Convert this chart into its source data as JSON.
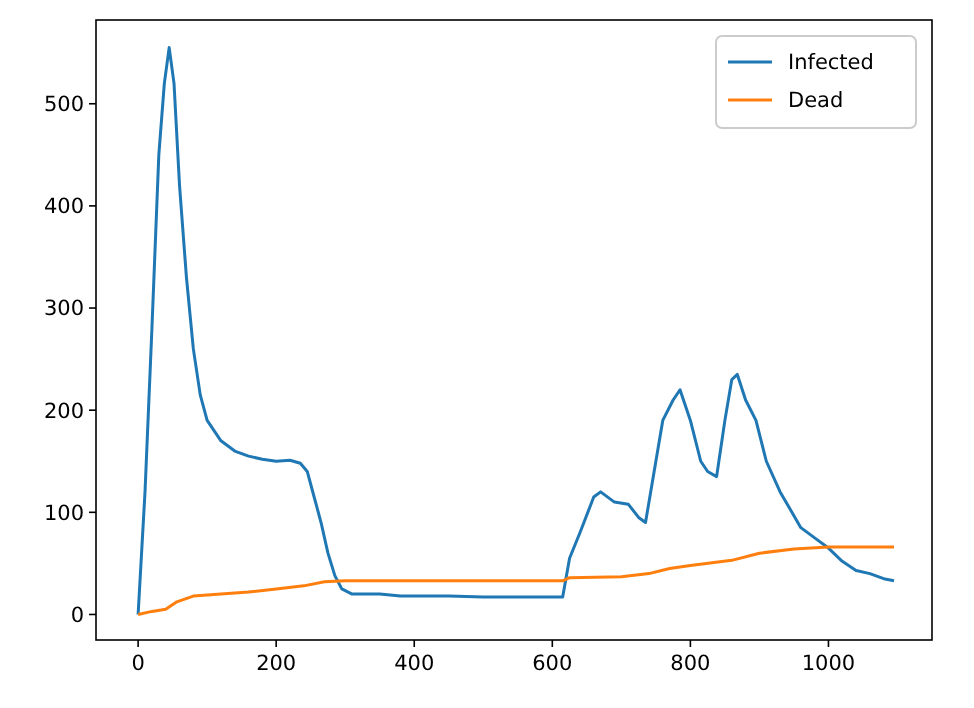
{
  "chart_data": {
    "type": "line",
    "xlim": [
      -61,
      1150
    ],
    "ylim": [
      -25,
      582
    ],
    "xticks": [
      0,
      200,
      400,
      600,
      800,
      1000
    ],
    "yticks": [
      0,
      100,
      200,
      300,
      400,
      500
    ],
    "grid": false,
    "legend": "top right",
    "series": [
      {
        "name": "Infected",
        "color": "#1f77b4",
        "x": [
          0,
          10,
          20,
          30,
          38,
          45,
          52,
          60,
          70,
          80,
          90,
          100,
          120,
          140,
          160,
          180,
          200,
          220,
          235,
          245,
          255,
          265,
          275,
          285,
          295,
          310,
          350,
          380,
          450,
          500,
          550,
          615,
          625,
          640,
          660,
          670,
          690,
          710,
          725,
          735,
          745,
          760,
          775,
          785,
          800,
          815,
          825,
          838,
          850,
          860,
          868,
          880,
          895,
          910,
          930,
          960,
          980,
          1000,
          1020,
          1040,
          1060,
          1080,
          1095
        ],
        "values": [
          0,
          120,
          280,
          450,
          520,
          555,
          520,
          420,
          330,
          260,
          215,
          190,
          170,
          160,
          155,
          152,
          150,
          151,
          148,
          140,
          115,
          90,
          60,
          38,
          25,
          20,
          20,
          18,
          18,
          17,
          17,
          17,
          55,
          80,
          115,
          120,
          110,
          108,
          95,
          90,
          130,
          190,
          210,
          220,
          190,
          150,
          140,
          135,
          190,
          230,
          235,
          210,
          190,
          150,
          120,
          85,
          75,
          65,
          52,
          43,
          40,
          35,
          33
        ]
      },
      {
        "name": "Dead",
        "color": "#ff7f0e",
        "x": [
          0,
          20,
          40,
          55,
          80,
          120,
          160,
          200,
          240,
          270,
          300,
          615,
          625,
          700,
          740,
          770,
          800,
          860,
          900,
          950,
          1000,
          1095
        ],
        "values": [
          0,
          3,
          5,
          12,
          18,
          20,
          22,
          25,
          28,
          32,
          33,
          33,
          36,
          37,
          40,
          45,
          48,
          53,
          60,
          64,
          66,
          66
        ]
      }
    ]
  }
}
